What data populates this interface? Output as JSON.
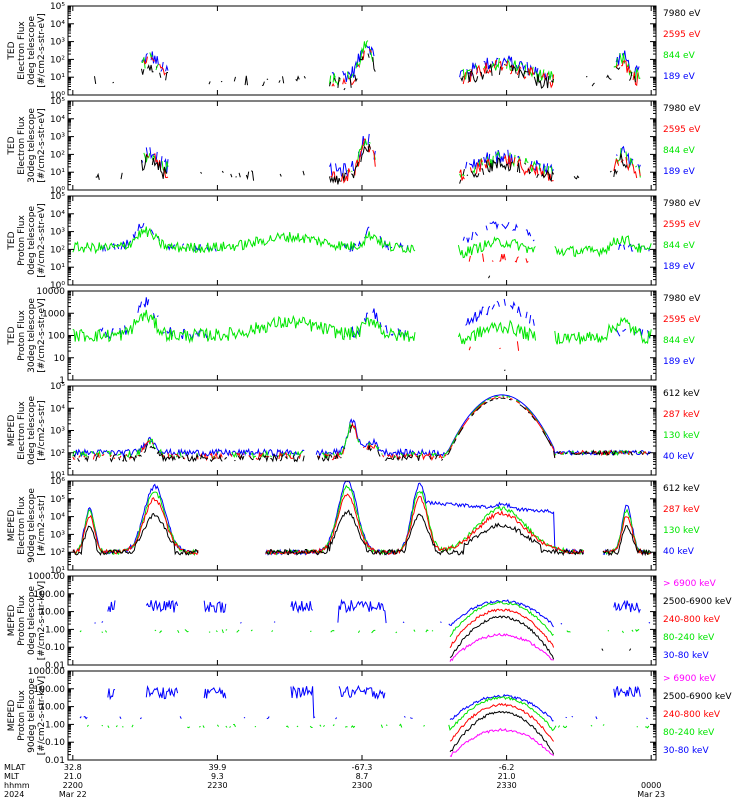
{
  "colors": {
    "black": "#000000",
    "red": "#ff0000",
    "green": "#00e600",
    "blue": "#0000ff",
    "magenta": "#ff00ff"
  },
  "chart_data": [
    {
      "type": "line",
      "ylabel": [
        "TED",
        "Electron Flux",
        "0deg telescope",
        "[#/cm2-s-str-eV]"
      ],
      "yscale": "log",
      "ylim": [
        1,
        100000
      ],
      "yticks": [
        {
          "v": 1,
          "label": "10⁰"
        },
        {
          "v": 10,
          "label": "10¹"
        },
        {
          "v": 100,
          "label": "10²"
        },
        {
          "v": 1000,
          "label": "10³"
        },
        {
          "v": 10000,
          "label": "10⁴"
        },
        {
          "v": 100000,
          "label": "10⁵"
        }
      ],
      "legend": [
        {
          "label": "7980 eV",
          "color": "black"
        },
        {
          "label": "2595 eV",
          "color": "red"
        },
        {
          "label": "844 eV",
          "color": "green"
        },
        {
          "label": "189 eV",
          "color": "blue"
        }
      ]
    },
    {
      "type": "line",
      "ylabel": [
        "TED",
        "Electron Flux",
        "30deg telescope",
        "[#/cm2-s-str-eV]"
      ],
      "yscale": "log",
      "ylim": [
        1,
        100000
      ],
      "yticks": [
        {
          "v": 1,
          "label": "10⁰"
        },
        {
          "v": 10,
          "label": "10¹"
        },
        {
          "v": 100,
          "label": "10²"
        },
        {
          "v": 1000,
          "label": "10³"
        },
        {
          "v": 10000,
          "label": "10⁴"
        },
        {
          "v": 100000,
          "label": "10⁵"
        }
      ],
      "legend": [
        {
          "label": "7980 eV",
          "color": "black"
        },
        {
          "label": "2595 eV",
          "color": "red"
        },
        {
          "label": "844 eV",
          "color": "green"
        },
        {
          "label": "189 eV",
          "color": "blue"
        }
      ]
    },
    {
      "type": "line",
      "ylabel": [
        "TED",
        "Proton Flux",
        "0deg telescope",
        "[#/cm2-s-str-eV]"
      ],
      "yscale": "log",
      "ylim": [
        1,
        100000
      ],
      "yticks": [
        {
          "v": 1,
          "label": "10⁰"
        },
        {
          "v": 10,
          "label": "10¹"
        },
        {
          "v": 100,
          "label": "10²"
        },
        {
          "v": 1000,
          "label": "10³"
        },
        {
          "v": 10000,
          "label": "10⁴"
        },
        {
          "v": 100000,
          "label": "10⁵"
        }
      ],
      "legend": [
        {
          "label": "7980 eV",
          "color": "black"
        },
        {
          "label": "2595 eV",
          "color": "red"
        },
        {
          "label": "844 eV",
          "color": "green"
        },
        {
          "label": "189 eV",
          "color": "blue"
        }
      ]
    },
    {
      "type": "line",
      "ylabel": [
        "TED",
        "Proton Flux",
        "30deg telescope",
        "[#/cm2-s-str-eV]"
      ],
      "yscale": "log",
      "ylim": [
        1,
        10000
      ],
      "yticks": [
        {
          "v": 1,
          "label": "1"
        },
        {
          "v": 10,
          "label": "10"
        },
        {
          "v": 100,
          "label": "100"
        },
        {
          "v": 1000,
          "label": "1000"
        },
        {
          "v": 10000,
          "label": "10000"
        }
      ],
      "legend": [
        {
          "label": "7980 eV",
          "color": "black"
        },
        {
          "label": "2595 eV",
          "color": "red"
        },
        {
          "label": "844 eV",
          "color": "green"
        },
        {
          "label": "189 eV",
          "color": "blue"
        }
      ]
    },
    {
      "type": "line",
      "ylabel": [
        "MEPED",
        "Electron Flux",
        "0deg telescope",
        "[#/cm2-s-str]"
      ],
      "yscale": "log",
      "ylim": [
        10,
        100000
      ],
      "yticks": [
        {
          "v": 10,
          "label": "10¹"
        },
        {
          "v": 100,
          "label": "10²"
        },
        {
          "v": 1000,
          "label": "10³"
        },
        {
          "v": 10000,
          "label": "10⁴"
        },
        {
          "v": 100000,
          "label": "10⁵"
        }
      ],
      "legend": [
        {
          "label": "612 keV",
          "color": "black"
        },
        {
          "label": "287 keV",
          "color": "red"
        },
        {
          "label": "130 keV",
          "color": "green"
        },
        {
          "label": "40 keV",
          "color": "blue"
        }
      ]
    },
    {
      "type": "line",
      "ylabel": [
        "MEPED",
        "Electron Flux",
        "90deg telescope",
        "[#/cm2-s-str]"
      ],
      "yscale": "log",
      "ylim": [
        10,
        1000000
      ],
      "yticks": [
        {
          "v": 10,
          "label": "10¹"
        },
        {
          "v": 100,
          "label": "10²"
        },
        {
          "v": 1000,
          "label": "10³"
        },
        {
          "v": 10000,
          "label": "10⁴"
        },
        {
          "v": 100000,
          "label": "10⁵"
        },
        {
          "v": 1000000,
          "label": "10⁶"
        }
      ],
      "legend": [
        {
          "label": "612 keV",
          "color": "black"
        },
        {
          "label": "287 keV",
          "color": "red"
        },
        {
          "label": "130 keV",
          "color": "green"
        },
        {
          "label": "40 keV",
          "color": "blue"
        }
      ]
    },
    {
      "type": "line",
      "ylabel": [
        "MEPED",
        "Proton Flux",
        "0deg telescope",
        "[#/cm2-s-str-keV]"
      ],
      "yscale": "log",
      "ylim": [
        0.01,
        1000
      ],
      "yticks": [
        {
          "v": 0.01,
          "label": "0.01"
        },
        {
          "v": 0.1,
          "label": "0.10"
        },
        {
          "v": 1,
          "label": "1.00"
        },
        {
          "v": 10,
          "label": "10.00"
        },
        {
          "v": 100,
          "label": "100.00"
        },
        {
          "v": 1000,
          "label": "1000.00"
        }
      ],
      "legend": [
        {
          "label": "> 6900 keV",
          "color": "magenta"
        },
        {
          "label": "2500-6900 keV",
          "color": "black"
        },
        {
          "label": "240-800 keV",
          "color": "red"
        },
        {
          "label": "80-240 keV",
          "color": "green"
        },
        {
          "label": "30-80 keV",
          "color": "blue"
        }
      ]
    },
    {
      "type": "line",
      "ylabel": [
        "MEPED",
        "Proton Flux",
        "90deg telescope",
        "[#/cm2-s-str-keV]"
      ],
      "yscale": "log",
      "ylim": [
        0.01,
        1000
      ],
      "yticks": [
        {
          "v": 0.01,
          "label": "0.01"
        },
        {
          "v": 0.1,
          "label": "0.10"
        },
        {
          "v": 1,
          "label": "1.00"
        },
        {
          "v": 10,
          "label": "10.00"
        },
        {
          "v": 100,
          "label": "100.00"
        },
        {
          "v": 1000,
          "label": "1000.00"
        }
      ],
      "legend": [
        {
          "label": "> 6900 keV",
          "color": "magenta"
        },
        {
          "label": "2500-6900 keV",
          "color": "black"
        },
        {
          "label": "240-800 keV",
          "color": "red"
        },
        {
          "label": "80-240 keV",
          "color": "green"
        },
        {
          "label": "30-80 keV",
          "color": "blue"
        }
      ]
    }
  ],
  "xaxis": {
    "row_labels": [
      "MLAT",
      "MLT",
      "hhmm",
      "2024"
    ],
    "ticks": [
      {
        "t": 0,
        "lines": [
          "32.8",
          "21.0",
          "2200",
          "Mar 22"
        ]
      },
      {
        "t": 30,
        "lines": [
          "39.9",
          "9.3",
          "2230",
          ""
        ]
      },
      {
        "t": 60,
        "lines": [
          "-67.3",
          "8.7",
          "2300",
          ""
        ]
      },
      {
        "t": 90,
        "lines": [
          "-6.2",
          "21.0",
          "2330",
          ""
        ]
      },
      {
        "t": 120,
        "lines": [
          "",
          "",
          "0000",
          "Mar 23"
        ]
      }
    ]
  }
}
